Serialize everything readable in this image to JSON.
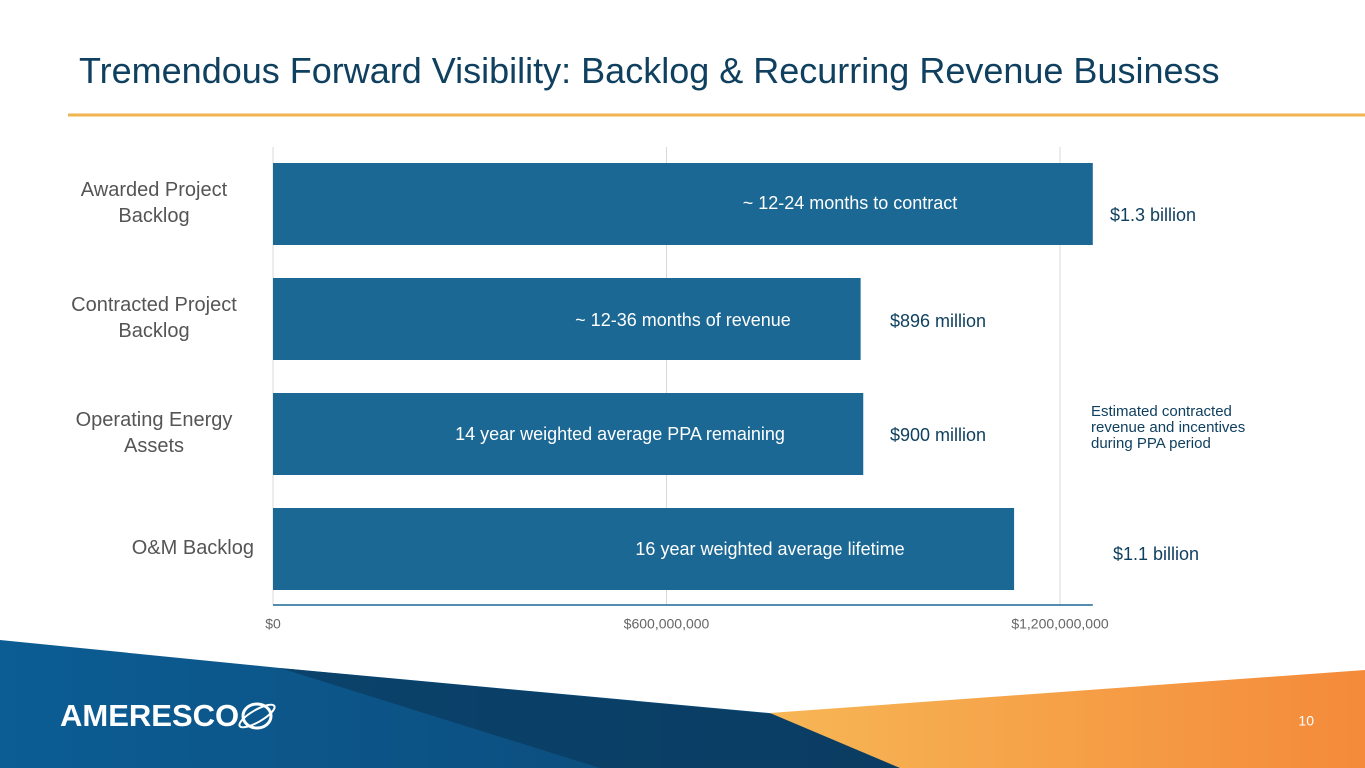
{
  "slide": {
    "title": "Tremendous Forward Visibility: Backlog & Recurring Revenue Business",
    "logo": "AMERESCO",
    "page_number": "10"
  },
  "chart_data": {
    "type": "bar",
    "orientation": "horizontal",
    "color": "#1b6894",
    "categories": [
      "Awarded Project Backlog",
      "Contracted Project Backlog",
      "Operating Energy Assets",
      "O&M Backlog"
    ],
    "values": [
      1250000000,
      896000000,
      900000000,
      1130000000
    ],
    "value_labels": [
      "$1.3 billion",
      "$896 million",
      "$900 million",
      "$1.1 billion"
    ],
    "annotations": [
      "~ 12-24 months to contract",
      "~ 12-36 months of revenue",
      "14 year weighted average PPA remaining",
      "16 year weighted average lifetime"
    ],
    "note": "Estimated contracted revenue and incentives during PPA period",
    "xlim": [
      0,
      1250000000
    ],
    "xticks": [
      {
        "value": 0,
        "label": "$0"
      },
      {
        "value": 600000000,
        "label": "$600,000,000"
      },
      {
        "value": 1200000000,
        "label": "$1,200,000,000"
      }
    ],
    "grid": true
  }
}
